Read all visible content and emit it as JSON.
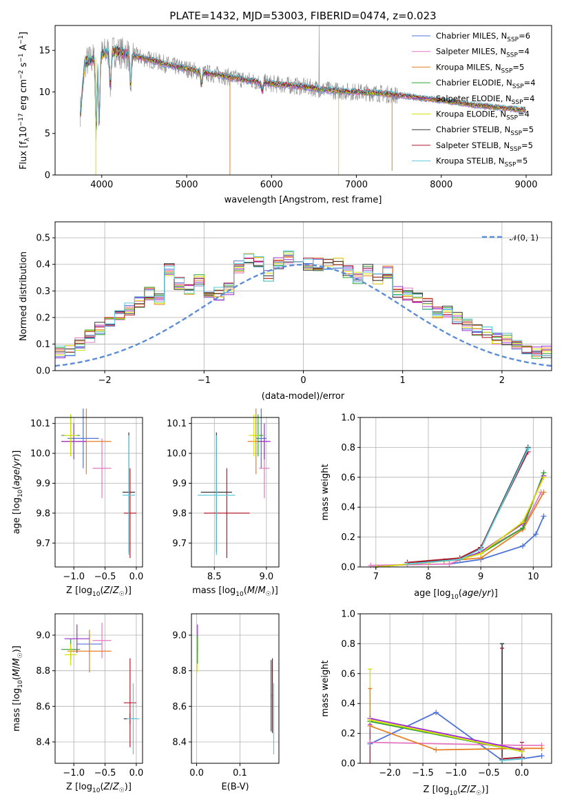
{
  "colors": {
    "chabrier_miles": "#4c72d8",
    "salpeter_miles": "#e377c2",
    "kroupa_miles": "#e67e22",
    "chabrier_elodie": "#2ca02c",
    "salpeter_elodie": "#9b2bd0",
    "kroupa_elodie": "#d8e000",
    "chabrier_stelib": "#333333",
    "salpeter_stelib": "#b2182b",
    "kroupa_stelib": "#5ac8d8",
    "grid": "#b0b0b0",
    "gauss": "#5b8cd6"
  },
  "chart_data": [
    {
      "id": "spectrum",
      "type": "line",
      "title": "PLATE=1432, MJD=53003, FIBERID=0474, z=0.023",
      "xlabel": "wavelength [Angstrom, rest frame]",
      "ylabel": "Flux [f_λ10^-17 erg cm^-2 s^-1 A^-1]",
      "xlim": [
        3450,
        9300
      ],
      "ylim": [
        0,
        18
      ],
      "xticks": [
        "4000",
        "5000",
        "6000",
        "7000",
        "8000",
        "9000"
      ],
      "yticks": [
        "0",
        "5",
        "10",
        "15"
      ],
      "grid": false,
      "legend_position": "top-right",
      "continuum": [
        [
          3750,
          7.5
        ],
        [
          3800,
          13.5
        ],
        [
          3900,
          14.0
        ],
        [
          4000,
          14.5
        ],
        [
          4100,
          15.0
        ],
        [
          4200,
          14.8
        ],
        [
          4400,
          14.3
        ],
        [
          4600,
          13.8
        ],
        [
          4800,
          13.2
        ],
        [
          5000,
          12.8
        ],
        [
          5200,
          12.3
        ],
        [
          5400,
          12.0
        ],
        [
          5600,
          11.6
        ],
        [
          5800,
          11.3
        ],
        [
          6000,
          11.0
        ],
        [
          6200,
          10.8
        ],
        [
          6400,
          10.6
        ],
        [
          6600,
          10.3
        ],
        [
          6800,
          10.1
        ],
        [
          7000,
          10.0
        ],
        [
          7200,
          9.9
        ],
        [
          7400,
          9.7
        ],
        [
          7600,
          9.5
        ],
        [
          7800,
          9.2
        ],
        [
          8000,
          9.0
        ],
        [
          8200,
          8.7
        ],
        [
          8400,
          8.4
        ],
        [
          8600,
          8.2
        ],
        [
          8800,
          8.0
        ],
        [
          9000,
          7.8
        ]
      ],
      "absorption_lines": [
        [
          3934,
          5.5
        ],
        [
          3969,
          6.5
        ],
        [
          4102,
          10.5
        ],
        [
          4340,
          10.5
        ],
        [
          5175,
          10.8
        ],
        [
          5890,
          10.0
        ]
      ],
      "sharp_dips": [
        [
          3930,
          0.0,
          "kroupa_elodie"
        ],
        [
          5510,
          0.0,
          "kroupa_miles"
        ],
        [
          6790,
          0.0,
          "kroupa_elodie"
        ],
        [
          7420,
          0.5,
          "kroupa_miles"
        ]
      ],
      "series": [
        {
          "key": "chabrier_miles",
          "label": "Chabrier MILES, N",
          "sub": "SSP",
          "suffix": "=6"
        },
        {
          "key": "salpeter_miles",
          "label": "Salpeter MILES, N",
          "sub": "SSP",
          "suffix": "=4"
        },
        {
          "key": "kroupa_miles",
          "label": "Kroupa MILES, N",
          "sub": "SSP",
          "suffix": "=5"
        },
        {
          "key": "chabrier_elodie",
          "label": "Chabrier ELODIE, N",
          "sub": "SSP",
          "suffix": "=4"
        },
        {
          "key": "salpeter_elodie",
          "label": "Salpeter ELODIE, N",
          "sub": "SSP",
          "suffix": "=4"
        },
        {
          "key": "kroupa_elodie",
          "label": "Kroupa ELODIE, N",
          "sub": "SSP",
          "suffix": "=4"
        },
        {
          "key": "chabrier_stelib",
          "label": "Chabrier STELIB, N",
          "sub": "SSP",
          "suffix": "=5"
        },
        {
          "key": "salpeter_stelib",
          "label": "Salpeter STELIB, N",
          "sub": "SSP",
          "suffix": "=5"
        },
        {
          "key": "kroupa_stelib",
          "label": "Kroupa STELIB, N",
          "sub": "SSP",
          "suffix": "=5"
        }
      ]
    },
    {
      "id": "residuals",
      "type": "histogram",
      "xlabel": "(data-model)/error",
      "ylabel": "Normed distribution",
      "xlim": [
        -2.5,
        2.5
      ],
      "ylim": [
        0,
        0.56
      ],
      "xticks": [
        "−2",
        "−1",
        "0",
        "1",
        "2"
      ],
      "yticks": [
        "0.0",
        "0.1",
        "0.2",
        "0.3",
        "0.4",
        "0.5"
      ],
      "grid": true,
      "legend_position": "top-right",
      "legend": "𝒩(0, 1)",
      "bin_width": 0.1,
      "base_counts": [
        0.02,
        0.03,
        0.05,
        0.06,
        0.06,
        0.07,
        0.08,
        0.1,
        0.13,
        0.16,
        0.19,
        0.21,
        0.23,
        0.26,
        0.29,
        0.27,
        0.38,
        0.33,
        0.31,
        0.34,
        0.3,
        0.29,
        0.31,
        0.39,
        0.43,
        0.41,
        0.36,
        0.4,
        0.43,
        0.4,
        0.4,
        0.4,
        0.4,
        0.41,
        0.37,
        0.35,
        0.38,
        0.34,
        0.37,
        0.3,
        0.29,
        0.28,
        0.25,
        0.22,
        0.22,
        0.2,
        0.17,
        0.15,
        0.14,
        0.12,
        0.12,
        0.09,
        0.08,
        0.07,
        0.07,
        0.07,
        0.06,
        0.05,
        0.04,
        0.03
      ]
    },
    {
      "id": "age_vs_z",
      "type": "scatter",
      "xlabel": "Z [log10(Z/Z☉)]",
      "ylabel": "age [log10(age/yr)]",
      "xlim": [
        -1.3,
        0.1
      ],
      "ylim": [
        9.62,
        10.12
      ],
      "xticks": [
        "−1.0",
        "−0.5",
        "0.0"
      ],
      "yticks": [
        "9.7",
        "9.8",
        "9.9",
        "10.0",
        "10.1"
      ],
      "grid": true,
      "points": [
        {
          "key": "chabrier_miles",
          "x": -0.85,
          "xerr": 0.25,
          "y": 10.05,
          "yerr": 0.1
        },
        {
          "key": "salpeter_miles",
          "x": -0.55,
          "xerr": 0.15,
          "y": 9.95,
          "yerr": 0.1
        },
        {
          "key": "kroupa_miles",
          "x": -0.8,
          "xerr": 0.4,
          "y": 10.04,
          "yerr": 0.11
        },
        {
          "key": "chabrier_elodie",
          "x": -1.05,
          "xerr": 0.15,
          "y": 10.06,
          "yerr": 0.07
        },
        {
          "key": "salpeter_elodie",
          "x": -1.0,
          "xerr": 0.2,
          "y": 10.04,
          "yerr": 0.06
        },
        {
          "key": "kroupa_elodie",
          "x": -1.05,
          "xerr": 0.1,
          "y": 10.06,
          "yerr": 0.07
        },
        {
          "key": "chabrier_stelib",
          "x": -0.12,
          "xerr": 0.1,
          "y": 9.87,
          "yerr": 0.2
        },
        {
          "key": "salpeter_stelib",
          "x": -0.1,
          "xerr": 0.1,
          "y": 9.8,
          "yerr": 0.15
        },
        {
          "key": "kroupa_stelib",
          "x": -0.12,
          "xerr": 0.1,
          "y": 9.86,
          "yerr": 0.2
        }
      ]
    },
    {
      "id": "age_vs_mass",
      "type": "scatter",
      "xlabel": "mass [log10(M/M☉)]",
      "ylabel": "",
      "xlim": [
        8.28,
        9.12
      ],
      "ylim": [
        9.62,
        10.12
      ],
      "xticks": [
        "8.5",
        "9.0"
      ],
      "yticks": [
        "9.7",
        "9.8",
        "9.9",
        "10.0",
        "10.1"
      ],
      "grid": true,
      "points": [
        {
          "key": "chabrier_miles",
          "x": 8.95,
          "xerr": 0.05,
          "y": 10.05,
          "yerr": 0.1
        },
        {
          "key": "salpeter_miles",
          "x": 8.98,
          "xerr": 0.05,
          "y": 9.95,
          "yerr": 0.1
        },
        {
          "key": "kroupa_miles",
          "x": 8.9,
          "xerr": 0.08,
          "y": 10.04,
          "yerr": 0.11
        },
        {
          "key": "chabrier_elodie",
          "x": 8.92,
          "xerr": 0.05,
          "y": 10.06,
          "yerr": 0.07
        },
        {
          "key": "salpeter_elodie",
          "x": 8.98,
          "xerr": 0.06,
          "y": 10.04,
          "yerr": 0.06
        },
        {
          "key": "kroupa_elodie",
          "x": 8.88,
          "xerr": 0.05,
          "y": 10.06,
          "yerr": 0.07
        },
        {
          "key": "chabrier_stelib",
          "x": 8.52,
          "xerr": 0.15,
          "y": 9.87,
          "yerr": 0.2
        },
        {
          "key": "salpeter_stelib",
          "x": 8.62,
          "xerr": 0.22,
          "y": 9.8,
          "yerr": 0.15
        },
        {
          "key": "kroupa_stelib",
          "x": 8.52,
          "xerr": 0.18,
          "y": 9.86,
          "yerr": 0.2
        }
      ]
    },
    {
      "id": "mw_vs_age",
      "type": "line",
      "xlabel": "age [log10(age/yr)]",
      "ylabel": "mass weight",
      "xlim": [
        6.7,
        10.35
      ],
      "ylim": [
        0,
        1
      ],
      "xticks": [
        "7",
        "8",
        "9",
        "10"
      ],
      "yticks": [
        "0.0",
        "0.2",
        "0.4",
        "0.6",
        "0.8",
        "1.0"
      ],
      "grid": true,
      "series": [
        {
          "key": "chabrier_miles",
          "x": [
            8.4,
            9.0,
            9.8,
            10.05,
            10.2
          ],
          "y": [
            0.02,
            0.05,
            0.14,
            0.22,
            0.34
          ]
        },
        {
          "key": "salpeter_miles",
          "x": [
            6.9,
            8.4,
            9.0,
            9.8,
            10.15
          ],
          "y": [
            0.01,
            0.02,
            0.1,
            0.26,
            0.5
          ]
        },
        {
          "key": "kroupa_miles",
          "x": [
            8.3,
            9.0,
            9.8,
            10.2
          ],
          "y": [
            0.04,
            0.06,
            0.25,
            0.5
          ]
        },
        {
          "key": "chabrier_elodie",
          "x": [
            7.0,
            8.0,
            8.6,
            9.0,
            9.8,
            10.2
          ],
          "y": [
            0.0,
            0.03,
            0.05,
            0.09,
            0.26,
            0.63
          ]
        },
        {
          "key": "salpeter_elodie",
          "x": [
            7.0,
            8.0,
            8.6,
            9.0,
            9.8,
            10.2
          ],
          "y": [
            0.0,
            0.03,
            0.05,
            0.1,
            0.29,
            0.61
          ]
        },
        {
          "key": "kroupa_elodie",
          "x": [
            7.0,
            8.0,
            8.6,
            9.0,
            9.8,
            10.2
          ],
          "y": [
            0.0,
            0.03,
            0.05,
            0.09,
            0.3,
            0.6
          ]
        },
        {
          "key": "chabrier_stelib",
          "x": [
            7.6,
            8.6,
            9.0,
            9.9
          ],
          "y": [
            0.03,
            0.05,
            0.13,
            0.8
          ]
        },
        {
          "key": "salpeter_stelib",
          "x": [
            7.6,
            8.6,
            9.0,
            9.9
          ],
          "y": [
            0.03,
            0.06,
            0.13,
            0.77
          ]
        },
        {
          "key": "kroupa_stelib",
          "x": [
            7.6,
            8.6,
            9.0,
            9.9
          ],
          "y": [
            0.02,
            0.05,
            0.12,
            0.79
          ]
        }
      ]
    },
    {
      "id": "mass_vs_z",
      "type": "scatter",
      "xlabel": "Z [log10(Z/Z☉)]",
      "ylabel": "mass [log10(M/M☉)]",
      "xlim": [
        -1.3,
        0.1
      ],
      "ylim": [
        8.28,
        9.12
      ],
      "xticks": [
        "−1.0",
        "−0.5",
        "0.0"
      ],
      "yticks": [
        "8.4",
        "8.6",
        "8.8",
        "9.0"
      ],
      "grid": true,
      "points": [
        {
          "key": "chabrier_miles",
          "x": -0.75,
          "xerr": 0.2,
          "y": 8.95,
          "yerr": 0.05
        },
        {
          "key": "salpeter_miles",
          "x": -0.55,
          "xerr": 0.15,
          "y": 8.97,
          "yerr": 0.1
        },
        {
          "key": "kroupa_miles",
          "x": -0.75,
          "xerr": 0.35,
          "y": 8.91,
          "yerr": 0.12
        },
        {
          "key": "chabrier_elodie",
          "x": -1.05,
          "xerr": 0.15,
          "y": 8.92,
          "yerr": 0.06
        },
        {
          "key": "salpeter_elodie",
          "x": -0.95,
          "xerr": 0.2,
          "y": 8.98,
          "yerr": 0.08
        },
        {
          "key": "kroupa_elodie",
          "x": -1.05,
          "xerr": 0.1,
          "y": 8.89,
          "yerr": 0.06
        },
        {
          "key": "chabrier_stelib",
          "x": -0.1,
          "xerr": 0.1,
          "y": 8.53,
          "yerr": 0.03
        },
        {
          "key": "salpeter_stelib",
          "x": -0.1,
          "xerr": 0.1,
          "y": 8.62,
          "yerr": 0.25
        },
        {
          "key": "kroupa_stelib",
          "x": -0.05,
          "xerr": 0.1,
          "y": 8.53,
          "yerr": 0.2
        }
      ]
    },
    {
      "id": "mass_vs_ebv",
      "type": "scatter",
      "xlabel": "E(B-V)",
      "ylabel": "",
      "xlim": [
        -0.012,
        0.19
      ],
      "ylim": [
        8.28,
        9.12
      ],
      "xticks": [
        "0.0",
        "0.1"
      ],
      "yticks": [
        "8.4",
        "8.6",
        "8.8",
        "9.0"
      ],
      "grid": true,
      "points": [
        {
          "key": "salpeter_elodie",
          "x": 0.002,
          "xerr": 0.001,
          "y": 8.98,
          "yerr": 0.08
        },
        {
          "key": "kroupa_elodie",
          "x": 0.001,
          "xerr": 0.001,
          "y": 8.89,
          "yerr": 0.1
        },
        {
          "key": "chabrier_elodie",
          "x": 0.002,
          "xerr": 0.001,
          "y": 8.92,
          "yerr": 0.08
        },
        {
          "key": "salpeter_stelib",
          "x": 0.172,
          "xerr": 0.001,
          "y": 8.66,
          "yerr": 0.2
        },
        {
          "key": "chabrier_stelib",
          "x": 0.175,
          "xerr": 0.001,
          "y": 8.66,
          "yerr": 0.21
        },
        {
          "key": "kroupa_stelib",
          "x": 0.178,
          "xerr": 0.001,
          "y": 8.53,
          "yerr": 0.2
        }
      ]
    },
    {
      "id": "mw_vs_z",
      "type": "line",
      "xlabel": "Z [log10(Z/Z☉)]",
      "ylabel": "mass weight",
      "xlim": [
        -2.45,
        0.45
      ],
      "ylim": [
        0,
        1
      ],
      "xticks": [
        "−2.0",
        "−1.5",
        "−1.0",
        "−0.5",
        "0.0"
      ],
      "yticks": [
        "0.0",
        "0.2",
        "0.4",
        "0.6",
        "0.8",
        "1.0"
      ],
      "grid": true,
      "series": [
        {
          "key": "chabrier_miles",
          "x": [
            -2.3,
            -1.3,
            -0.3,
            0.0,
            0.3
          ],
          "y": [
            0.13,
            0.34,
            0.02,
            0.03,
            0.05
          ]
        },
        {
          "key": "salpeter_miles",
          "x": [
            -2.3,
            0.0,
            0.3
          ],
          "y": [
            0.14,
            0.12,
            0.12
          ]
        },
        {
          "key": "kroupa_miles",
          "x": [
            -2.3,
            -1.3,
            0.0,
            0.3
          ],
          "y": [
            0.25,
            0.09,
            0.1,
            0.1
          ]
        },
        {
          "key": "chabrier_elodie",
          "x": [
            -2.3,
            0.0
          ],
          "y": [
            0.28,
            0.08
          ]
        },
        {
          "key": "salpeter_elodie",
          "x": [
            -2.3,
            0.0
          ],
          "y": [
            0.3,
            0.09
          ]
        },
        {
          "key": "kroupa_elodie",
          "x": [
            -2.3,
            0.0
          ],
          "y": [
            0.29,
            0.08
          ]
        },
        {
          "key": "chabrier_stelib",
          "x": [
            -0.3,
            0.0
          ],
          "y": [
            0.03,
            0.04
          ]
        },
        {
          "key": "salpeter_stelib",
          "x": [
            -0.3,
            0.0
          ],
          "y": [
            0.03,
            0.04
          ]
        },
        {
          "key": "kroupa_stelib",
          "x": [
            -0.3,
            0.0
          ],
          "y": [
            0.02,
            0.03
          ]
        }
      ],
      "stems": [
        {
          "key": "kroupa_elodie",
          "x": -2.3,
          "y0": 0.0,
          "y1": 0.63
        },
        {
          "key": "kroupa_miles",
          "x": -2.3,
          "y0": 0.0,
          "y1": 0.5
        },
        {
          "key": "salpeter_elodie",
          "x": -2.3,
          "y0": 0.0,
          "y1": 0.26
        },
        {
          "key": "kroupa_stelib",
          "x": -0.3,
          "y0": 0.0,
          "y1": 0.8
        },
        {
          "key": "salpeter_stelib",
          "x": -0.3,
          "y0": 0.0,
          "y1": 0.77
        },
        {
          "key": "chabrier_stelib",
          "x": -0.3,
          "y0": 0.0,
          "y1": 0.8
        },
        {
          "key": "salpeter_stelib",
          "x": 0.0,
          "y0": 0.0,
          "y1": 0.14
        },
        {
          "key": "kroupa_miles",
          "x": 0.0,
          "y0": 0.0,
          "y1": 0.1
        }
      ]
    }
  ]
}
